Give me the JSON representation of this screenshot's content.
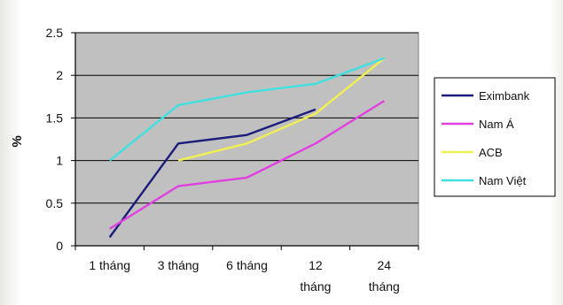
{
  "chart_data": {
    "type": "line",
    "title": "",
    "xlabel": "",
    "ylabel": "%",
    "categories": [
      "1 tháng",
      "3 tháng",
      "6 tháng",
      "12 tháng",
      "24 tháng"
    ],
    "category_lines": [
      [
        "1 tháng"
      ],
      [
        "3 tháng"
      ],
      [
        "6 tháng"
      ],
      [
        "12",
        "tháng"
      ],
      [
        "24",
        "tháng"
      ]
    ],
    "ylim": [
      0,
      2.5
    ],
    "yticks": [
      "0",
      "0.5",
      "1",
      "1.5",
      "2",
      "2.5"
    ],
    "grid": true,
    "legend_position": "right",
    "plot_background": "#c0c0c0",
    "series": [
      {
        "name": "Eximbank",
        "color": "#1c1c7a",
        "values": [
          0.1,
          1.2,
          1.3,
          1.6,
          null
        ]
      },
      {
        "name": "Nam Á",
        "color": "#e040e0",
        "values": [
          0.2,
          0.7,
          0.8,
          1.2,
          1.7
        ]
      },
      {
        "name": "ACB",
        "color": "#f0f050",
        "values": [
          null,
          1.0,
          1.2,
          1.55,
          2.2
        ]
      },
      {
        "name": "Nam Việt",
        "color": "#40e0e0",
        "values": [
          1.0,
          1.65,
          1.8,
          1.9,
          2.2
        ]
      }
    ]
  }
}
